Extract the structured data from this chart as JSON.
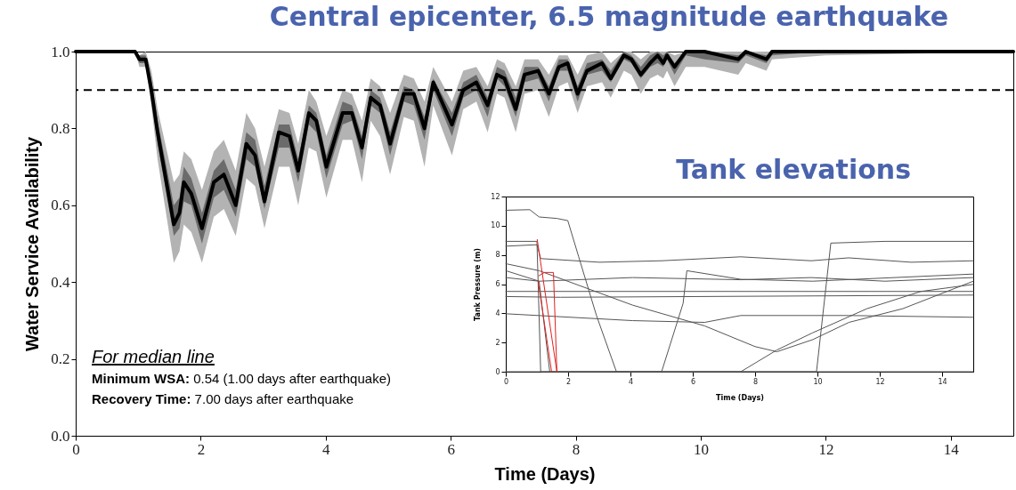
{
  "chart_data": [
    {
      "type": "line",
      "title": "Central epicenter, 6.5 magnitude earthquake",
      "xlabel": "Time (Days)",
      "ylabel": "Water Service Availability",
      "xlim": [
        0,
        15
      ],
      "xticks": [
        0,
        2,
        4,
        6,
        8,
        10,
        12,
        14
      ],
      "ylim": [
        0,
        1
      ],
      "yticks": [
        {
          "value": 0,
          "label": "0.0"
        },
        0.2,
        0.4,
        0.6,
        0.8,
        {
          "value": 1,
          "label": "1.0"
        }
      ],
      "x": [
        0,
        0.95,
        1.02,
        1.12,
        1.21,
        1.31,
        1.57,
        1.66,
        1.73,
        1.85,
        2.02,
        2.21,
        2.37,
        2.56,
        2.73,
        2.87,
        3.02,
        3.25,
        3.42,
        3.56,
        3.73,
        3.85,
        4.01,
        4.27,
        4.42,
        4.58,
        4.72,
        4.87,
        5.03,
        5.25,
        5.41,
        5.58,
        5.72,
        6.02,
        6.2,
        6.41,
        6.59,
        6.74,
        6.86,
        7.04,
        7.18,
        7.4,
        7.57,
        7.73,
        7.87,
        8.03,
        8.18,
        8.42,
        8.56,
        8.77,
        8.89,
        9.04,
        9.19,
        9.31,
        9.4,
        9.46,
        9.58,
        9.76,
        10.06,
        10.6,
        10.72,
        11.05,
        11.14,
        12,
        15
      ],
      "series": [
        {
          "color": "#b3b3b3",
          "values": [
            null,
            null,
            null,
            null,
            null,
            null,
            null,
            null,
            null,
            null,
            null,
            null,
            null,
            null,
            null,
            null,
            null,
            null,
            null,
            null,
            null,
            null,
            null,
            null,
            null,
            null,
            null,
            null,
            null,
            null,
            null,
            null,
            null,
            null,
            null,
            null,
            null,
            null,
            null,
            null,
            null,
            null,
            null,
            null,
            null,
            null,
            null,
            null,
            null,
            null,
            null,
            null,
            null,
            null,
            null,
            null,
            null,
            null,
            null,
            null,
            null,
            null,
            null,
            null,
            null
          ],
          "lower": [
            1,
            1,
            0.96,
            0.96,
            0.86,
            0.72,
            0.45,
            0.48,
            0.55,
            0.53,
            0.45,
            0.57,
            0.59,
            0.52,
            0.67,
            0.65,
            0.54,
            0.7,
            0.7,
            0.6,
            0.75,
            0.74,
            0.62,
            0.77,
            0.77,
            0.66,
            0.82,
            0.78,
            0.68,
            0.83,
            0.82,
            0.7,
            0.86,
            0.73,
            0.85,
            0.87,
            0.79,
            0.89,
            0.88,
            0.79,
            0.89,
            0.9,
            0.83,
            0.91,
            0.92,
            0.84,
            0.91,
            0.92,
            0.88,
            0.95,
            0.94,
            0.89,
            0.93,
            0.94,
            0.93,
            0.95,
            0.91,
            0.96,
            0.96,
            0.94,
            0.97,
            0.95,
            0.98,
            0.99,
            1
          ],
          "upper": [
            1,
            1,
            0.99,
            1,
            0.95,
            0.85,
            0.66,
            0.68,
            0.74,
            0.72,
            0.64,
            0.74,
            0.77,
            0.69,
            0.84,
            0.8,
            0.7,
            0.85,
            0.84,
            0.76,
            0.9,
            0.87,
            0.78,
            0.9,
            0.89,
            0.82,
            0.93,
            0.91,
            0.84,
            0.94,
            0.93,
            0.87,
            0.96,
            0.87,
            0.95,
            0.96,
            0.91,
            0.98,
            0.97,
            0.91,
            0.98,
            0.98,
            0.94,
            0.99,
            0.99,
            0.94,
            0.99,
            1,
            0.97,
            1,
            1,
            0.98,
            1,
            1,
            1,
            1,
            0.99,
            1,
            1,
            1,
            1,
            1,
            1,
            1,
            1
          ]
        },
        {
          "color": "#000000",
          "values": [
            1,
            1,
            0.98,
            0.98,
            0.9,
            0.79,
            0.55,
            0.58,
            0.66,
            0.63,
            0.54,
            0.66,
            0.68,
            0.6,
            0.76,
            0.73,
            0.61,
            0.79,
            0.78,
            0.69,
            0.84,
            0.82,
            0.7,
            0.84,
            0.84,
            0.75,
            0.88,
            0.86,
            0.76,
            0.89,
            0.89,
            0.8,
            0.92,
            0.81,
            0.9,
            0.92,
            0.86,
            0.94,
            0.93,
            0.85,
            0.94,
            0.95,
            0.89,
            0.96,
            0.97,
            0.89,
            0.95,
            0.97,
            0.93,
            0.99,
            0.98,
            0.94,
            0.97,
            0.99,
            0.97,
            0.99,
            0.96,
            1,
            1,
            0.98,
            1,
            0.98,
            1,
            1,
            1
          ],
          "lower": [
            1,
            1,
            0.97,
            0.97,
            0.88,
            0.76,
            0.52,
            0.54,
            0.61,
            0.6,
            0.5,
            0.62,
            0.64,
            0.57,
            0.72,
            0.7,
            0.59,
            0.75,
            0.75,
            0.66,
            0.81,
            0.79,
            0.67,
            0.81,
            0.82,
            0.72,
            0.86,
            0.84,
            0.73,
            0.87,
            0.86,
            0.77,
            0.9,
            0.78,
            0.88,
            0.9,
            0.83,
            0.93,
            0.91,
            0.83,
            0.92,
            0.93,
            0.87,
            0.95,
            0.95,
            0.87,
            0.94,
            0.95,
            0.92,
            0.98,
            0.97,
            0.93,
            0.96,
            0.97,
            0.96,
            0.98,
            0.94,
            0.99,
            0.98,
            0.97,
            0.99,
            0.97,
            0.99,
            1,
            1
          ],
          "upper": [
            1,
            1,
            0.99,
            0.99,
            0.93,
            0.82,
            0.6,
            0.62,
            0.7,
            0.67,
            0.58,
            0.69,
            0.72,
            0.64,
            0.79,
            0.77,
            0.65,
            0.81,
            0.81,
            0.72,
            0.86,
            0.84,
            0.73,
            0.87,
            0.86,
            0.78,
            0.9,
            0.88,
            0.79,
            0.91,
            0.9,
            0.83,
            0.93,
            0.84,
            0.92,
            0.94,
            0.88,
            0.96,
            0.95,
            0.88,
            0.96,
            0.96,
            0.91,
            0.98,
            0.98,
            0.91,
            0.97,
            0.98,
            0.95,
            1,
            0.99,
            0.96,
            0.99,
            1,
            0.99,
            1,
            0.97,
            1,
            1,
            0.99,
            1,
            0.99,
            1,
            1,
            1
          ]
        }
      ],
      "ref_lines": [
        {
          "axis": "y",
          "value": 0.9,
          "line_style": "dashed"
        }
      ],
      "annotations": [
        "For median line",
        "Minimum WSA: 0.54 (1.00 days after earthquake)",
        "Recovery Time: 7.00 days after earthquake"
      ]
    },
    {
      "type": "line",
      "title": "Tank elevations",
      "xlabel": "Time (Days)",
      "ylabel": "Tank Pressure (m)",
      "xlim": [
        0,
        15
      ],
      "xticks": [
        0,
        2,
        4,
        6,
        8,
        10,
        12,
        14
      ],
      "ylim": [
        0,
        12
      ],
      "yticks": [
        0,
        2,
        4,
        6,
        8,
        10,
        12
      ],
      "series": [
        {
          "color": "#555555",
          "x": [
            0,
            0.77,
            1.07,
            1.64,
            1.99,
            2.34,
            2.91,
            3.55,
            15
          ],
          "values": [
            11.06,
            11.1,
            10.6,
            10.5,
            10.35,
            7.87,
            3.85,
            0,
            0
          ]
        },
        {
          "color": "#555555",
          "x": [
            0,
            1,
            1.12,
            3,
            5,
            7.54,
            9.8,
            11,
            13,
            15
          ],
          "values": [
            8.6,
            8.7,
            7.75,
            7.5,
            7.6,
            7.87,
            7.6,
            7.8,
            7.5,
            7.6
          ]
        },
        {
          "color": "#555555",
          "x": [
            0,
            1.07,
            4.07,
            7.54,
            9.8,
            12.17,
            15
          ],
          "values": [
            6.45,
            6.2,
            6.45,
            6.3,
            6.45,
            6.2,
            6.45
          ]
        },
        {
          "color": "#555555",
          "x": [
            0,
            15
          ],
          "values": [
            5.5,
            5.5
          ]
        },
        {
          "color": "#555555",
          "x": [
            0,
            1.76,
            15
          ],
          "values": [
            5.15,
            5.1,
            5.25
          ]
        },
        {
          "color": "#555555",
          "x": [
            0,
            4.07,
            6.38,
            7.54,
            11.01,
            15
          ],
          "values": [
            3.97,
            3.5,
            3.38,
            3.85,
            3.85,
            3.73
          ]
        },
        {
          "color": "#555555",
          "x": [
            0,
            1.07,
            4.07,
            6.38,
            8,
            8.7,
            9.85,
            11.01,
            12.74,
            15
          ],
          "values": [
            7.4,
            6.92,
            4.56,
            3.14,
            1.72,
            1.37,
            2.2,
            3.38,
            4.32,
            6.2
          ]
        },
        {
          "color": "#555555",
          "x": [
            0,
            1,
            1.12,
            9.97,
            10.43,
            12.17,
            15
          ],
          "values": [
            8.93,
            8.93,
            0,
            0,
            8.81,
            8.93,
            8.93
          ]
        },
        {
          "color": "#555555",
          "x": [
            0,
            1.07,
            1.41,
            7.54,
            8.7,
            9.85,
            11.59,
            13.32,
            15
          ],
          "values": [
            6.92,
            6.2,
            0,
            0,
            1.49,
            2.67,
            4.32,
            5.5,
            5.98
          ]
        },
        {
          "color": "#555555",
          "x": [
            0,
            5,
            5.69,
            5.81,
            7.54,
            9.85,
            15
          ],
          "values": [
            0,
            0,
            4.68,
            6.92,
            6.33,
            6.2,
            6.69
          ]
        },
        {
          "color": "#e02020",
          "x": [
            1.01,
            1.64
          ],
          "values": [
            9.05,
            0
          ]
        },
        {
          "color": "#e02020",
          "x": [
            1.06,
            1.24,
            1.53,
            1.64
          ],
          "values": [
            6.57,
            6.8,
            6.8,
            0
          ]
        },
        {
          "color": "#e02020",
          "x": [
            1.04,
            1.47
          ],
          "values": [
            6.2,
            0
          ]
        }
      ]
    }
  ]
}
